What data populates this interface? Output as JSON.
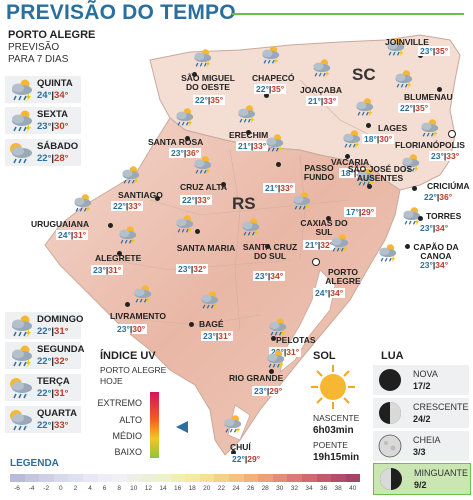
{
  "title": "PREVISÃO DO TEMPO",
  "header": {
    "city": "PORTO ALEGRE",
    "subtitle1": "PREVISÃO",
    "subtitle2": "PARA 7 DIAS"
  },
  "forecast": [
    {
      "day": "QUINTA",
      "min": "24°",
      "max": "34°",
      "icon": "storm-rain-icon"
    },
    {
      "day": "SEXTA",
      "min": "23°",
      "max": "30°",
      "icon": "storm-rain-icon"
    },
    {
      "day": "SÁBADO",
      "min": "22°",
      "max": "28°",
      "icon": "sun-rain-icon"
    },
    {
      "day": "DOMINGO",
      "min": "22°",
      "max": "31°",
      "icon": "storm-rain-icon"
    },
    {
      "day": "SEGUNDA",
      "min": "22°",
      "max": "32°",
      "icon": "storm-rain-icon"
    },
    {
      "day": "TERÇA",
      "min": "22°",
      "max": "31°",
      "icon": "sun-rain-icon"
    },
    {
      "day": "QUARTA",
      "min": "22°",
      "max": "33°",
      "icon": "sun-rain-icon"
    }
  ],
  "states": {
    "sc": "SC",
    "rs": "RS"
  },
  "cities": [
    {
      "name": "JOINVILLE",
      "min": "23°",
      "max": "35°"
    },
    {
      "name": "CHAPECÓ",
      "min": "22°",
      "max": "35°"
    },
    {
      "name": "SÃO MIGUEL DO OESTE",
      "min": "22°",
      "max": "35°"
    },
    {
      "name": "JOAÇABA",
      "min": "21°",
      "max": "33°"
    },
    {
      "name": "BLUMENAU",
      "min": "22°",
      "max": "35°"
    },
    {
      "name": "LAGES",
      "min": "18°",
      "max": "30°"
    },
    {
      "name": "FLORIANÓPOLIS",
      "min": "23°",
      "max": "33°"
    },
    {
      "name": "SANTA ROSA",
      "min": "23°",
      "max": "36°"
    },
    {
      "name": "ERECHIM",
      "min": "21°",
      "max": "33°"
    },
    {
      "name": "PASSO FUNDO",
      "min": "21°",
      "max": "33°"
    },
    {
      "name": "VACARIA",
      "min": "18°",
      "max": "31°"
    },
    {
      "name": "CRICIÚMA",
      "min": "22°",
      "max": "36°"
    },
    {
      "name": "SÃO JOSÉ DOS AUSENTES",
      "min": "17°",
      "max": "29°"
    },
    {
      "name": "TORRES",
      "min": "23°",
      "max": "34°"
    },
    {
      "name": "CRUZ ALTA",
      "min": "22°",
      "max": "33°"
    },
    {
      "name": "SANTIAGO",
      "min": "22°",
      "max": "33°"
    },
    {
      "name": "URUGUAIANA",
      "min": "24°",
      "max": "31°"
    },
    {
      "name": "CAXIAS DO SUL",
      "min": "21°",
      "max": "32°"
    },
    {
      "name": "CAPÃO DA CANOA",
      "min": "23°",
      "max": "34°"
    },
    {
      "name": "ALEGRETE",
      "min": "23°",
      "max": "31°"
    },
    {
      "name": "SANTA MARIA",
      "min": "23°",
      "max": "32°"
    },
    {
      "name": "SANTA CRUZ DO SUL",
      "min": "23°",
      "max": "34°"
    },
    {
      "name": "PORTO ALEGRE",
      "min": "24°",
      "max": "34°"
    },
    {
      "name": "LIVRAMENTO",
      "min": "23°",
      "max": "30°"
    },
    {
      "name": "BAGÉ",
      "min": "23°",
      "max": "31°"
    },
    {
      "name": "PELOTAS",
      "min": "23°",
      "max": "31°"
    },
    {
      "name": "RIO GRANDE",
      "min": "23°",
      "max": "29°"
    },
    {
      "name": "CHUÍ",
      "min": "22°",
      "max": "29°"
    }
  ],
  "uv": {
    "title": "ÍNDICE UV",
    "city": "PORTO ALEGRE",
    "when": "HOJE",
    "levels": [
      "EXTREMO",
      "ALTO",
      "MÉDIO",
      "BAIXO"
    ],
    "current": "ALTO",
    "current_fraction": 0.55
  },
  "sun": {
    "title": "SOL",
    "sunrise_label": "NASCENTE",
    "sunrise": "6h03min",
    "sunset_label": "POENTE",
    "sunset": "19h15min"
  },
  "moon": {
    "title": "LUA",
    "phases": [
      {
        "name": "NOVA",
        "date": "17/2"
      },
      {
        "name": "CRESCENTE",
        "date": "24/2"
      },
      {
        "name": "CHEIA",
        "date": "3/3"
      },
      {
        "name": "MINGUANTE",
        "date": "9/2",
        "highlight": true
      }
    ]
  },
  "legend": {
    "title": "LEGENDA",
    "ticks": [
      "-6",
      "-4",
      "-2",
      "0",
      "2",
      "4",
      "6",
      "8",
      "10",
      "12",
      "14",
      "16",
      "18",
      "20",
      "22",
      "24",
      "26",
      "28",
      "30",
      "32",
      "34",
      "36",
      "38",
      "40"
    ],
    "colors": [
      "#b8bcd9",
      "#c4c6e0",
      "#cfd0e6",
      "#d8d9ec",
      "#e0e1f0",
      "#e7e8f3",
      "#edeef5",
      "#f0f1f4",
      "#eef0e8",
      "#ecf0d8",
      "#eef2c7",
      "#f2efb4",
      "#f5e9a4",
      "#f6df97",
      "#f5d18c",
      "#f3c284",
      "#efb17e",
      "#eaa07a",
      "#e38e77",
      "#da7b74",
      "#cf6a71",
      "#c25a6e",
      "#b24d6b",
      "#a34468"
    ]
  },
  "colors": {
    "title_blue": "#2a6f9e",
    "accent_green": "#6dbf4b",
    "max_red": "#c0392b",
    "min_blue": "#2a6f9e",
    "minguante_bg": "#c9e6b3"
  }
}
